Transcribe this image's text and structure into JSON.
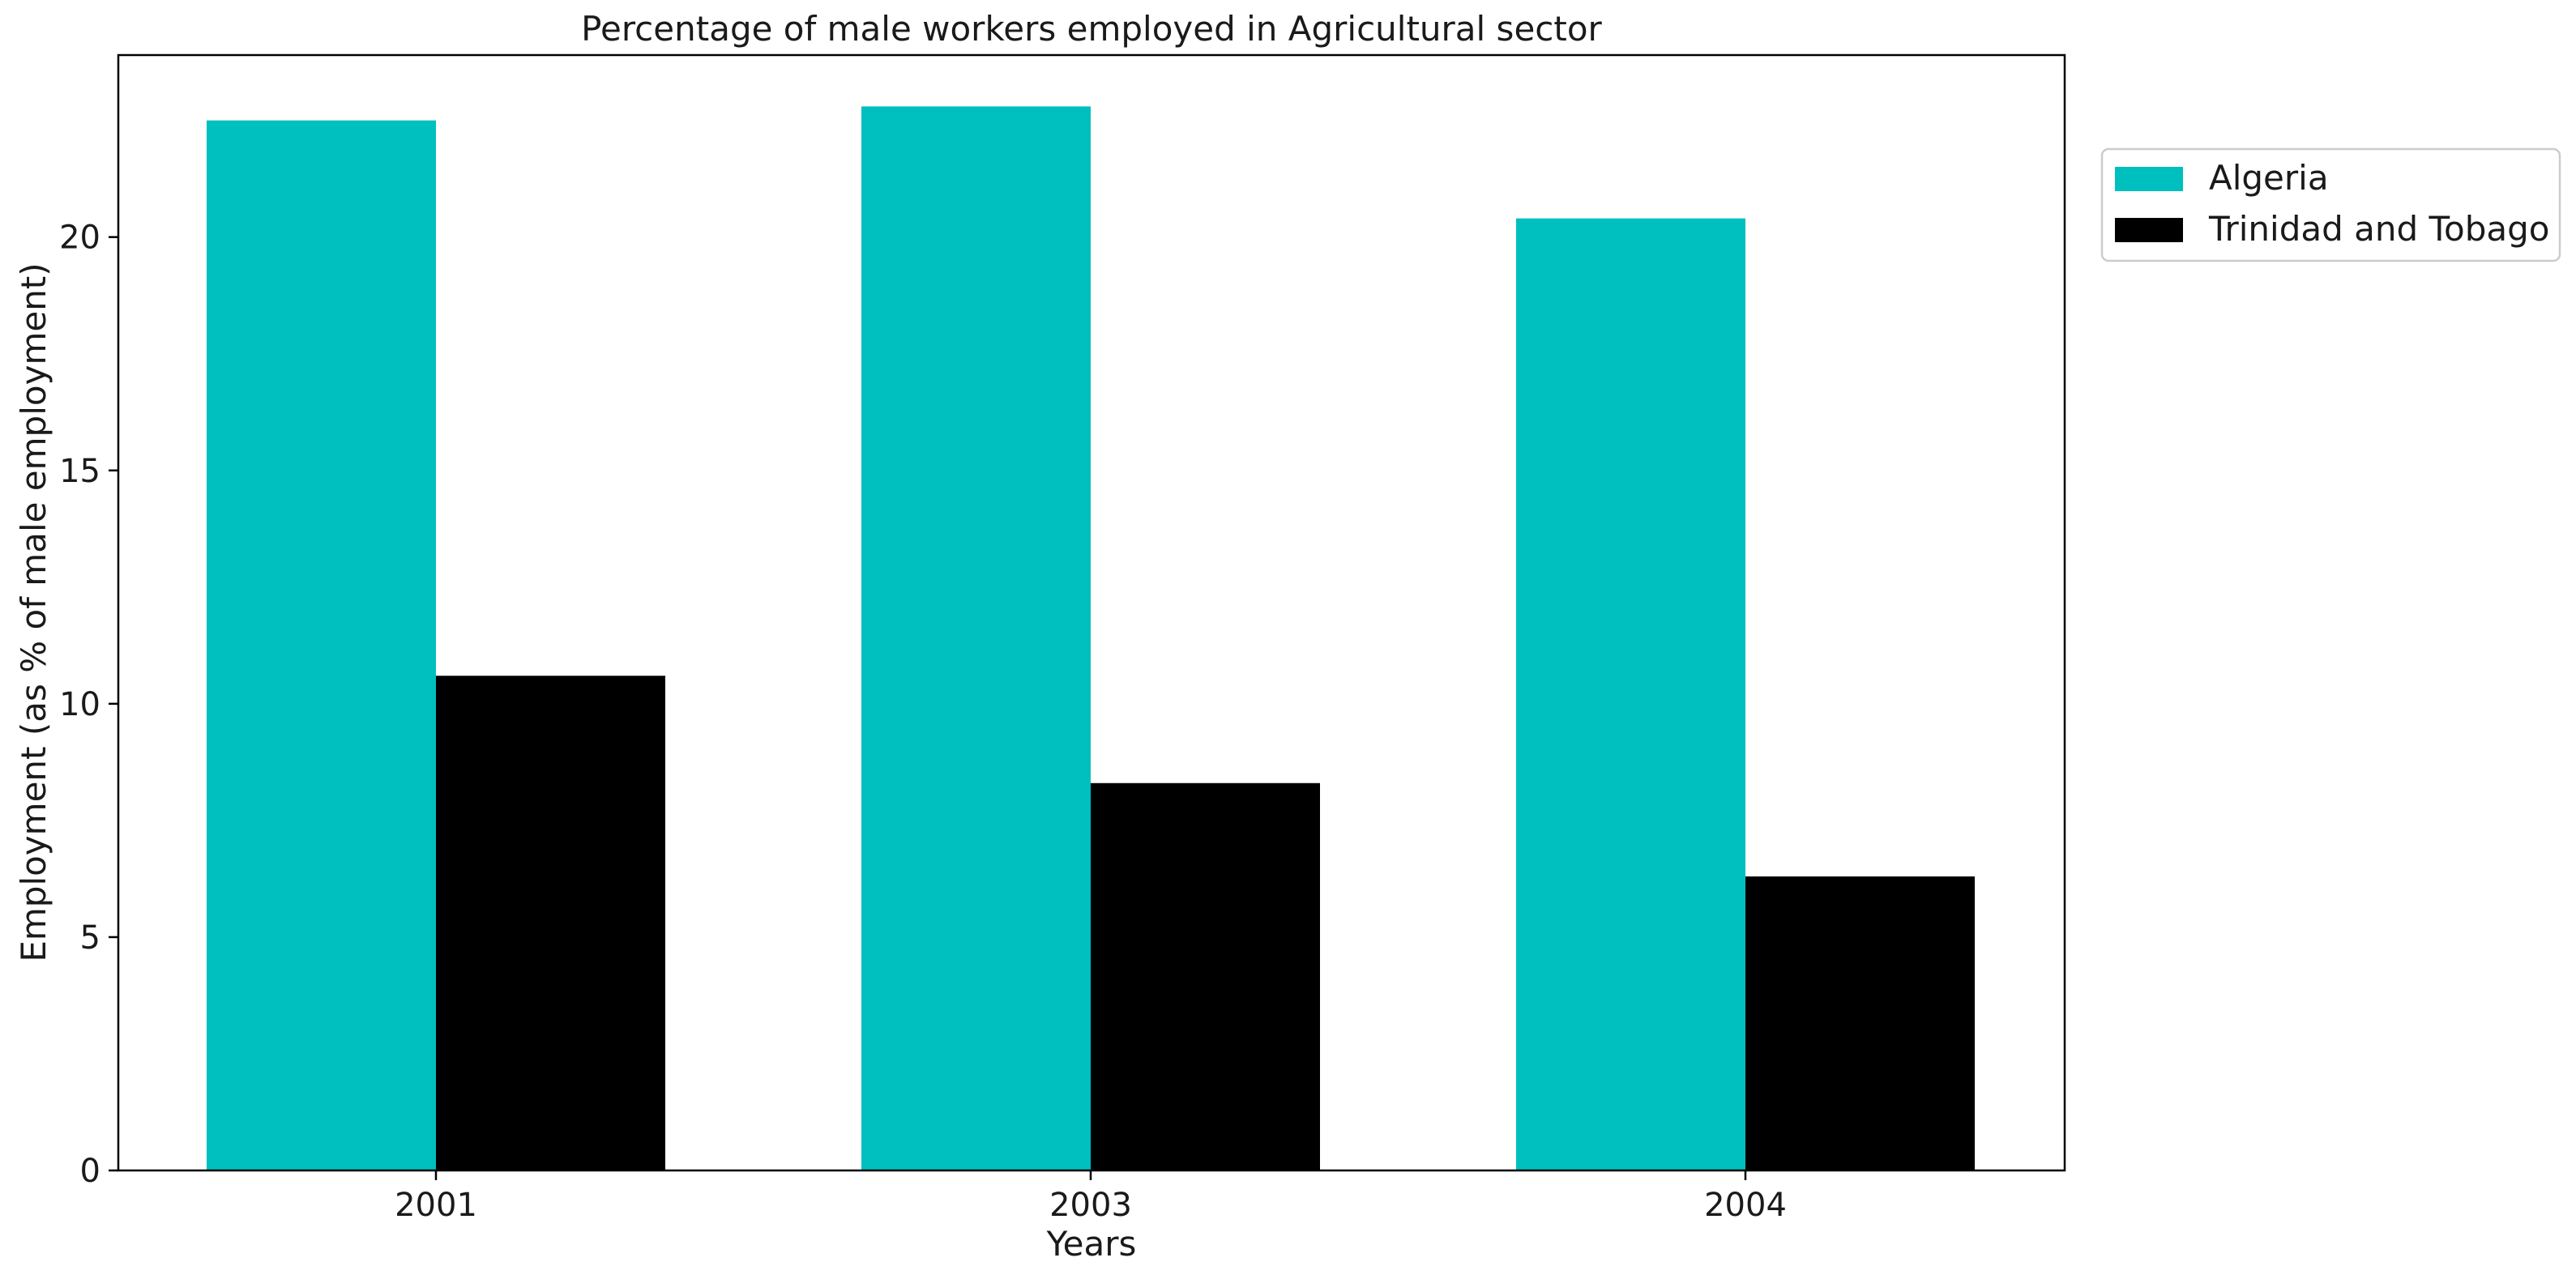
{
  "chart_data": {
    "type": "bar",
    "title": "Percentage of male workers employed in Agricultural sector",
    "xlabel": "Years",
    "ylabel": "Employment (as % of male employment)",
    "categories": [
      "2001",
      "2003",
      "2004"
    ],
    "series": [
      {
        "name": "Algeria",
        "values": [
          22.5,
          22.8,
          20.4
        ],
        "color": "#00bfbf"
      },
      {
        "name": "Trinidad and Tobago",
        "values": [
          10.6,
          8.3,
          6.3
        ],
        "color": "#000000"
      }
    ],
    "ylim": [
      0,
      23.9
    ],
    "yticks": [
      0,
      5,
      10,
      15,
      20
    ],
    "grid": false,
    "legend_position": "upper-right-outside"
  }
}
